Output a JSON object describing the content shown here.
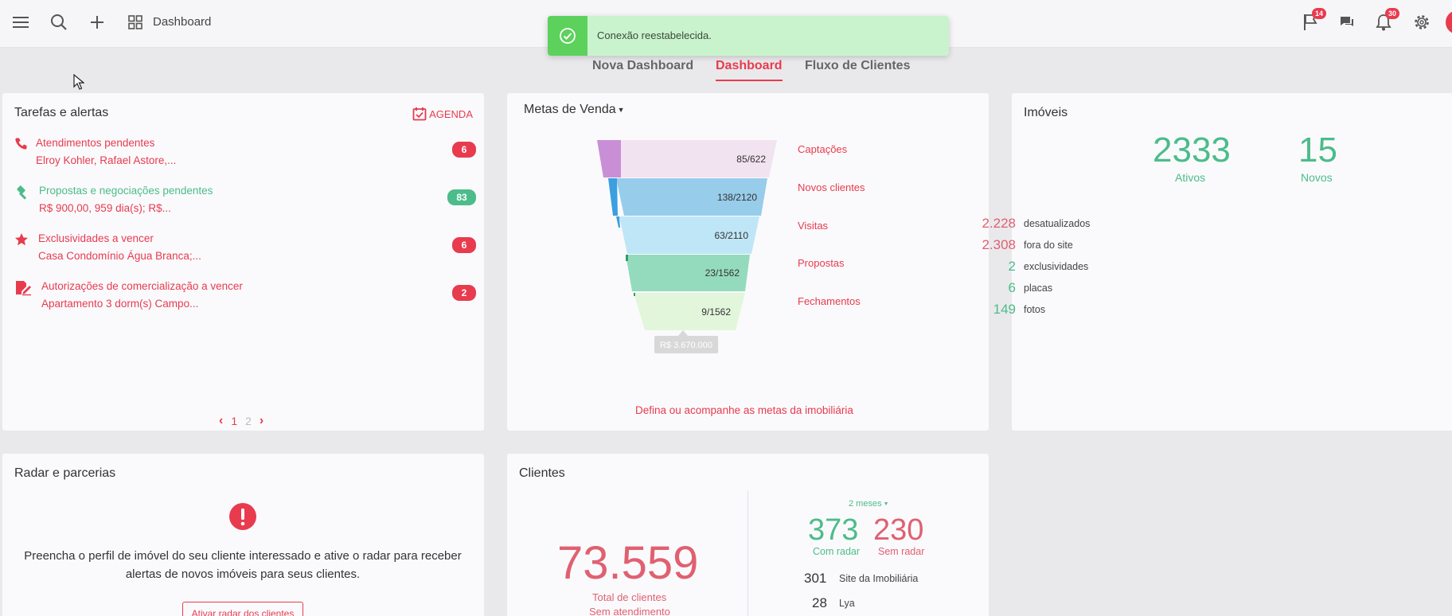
{
  "topbar": {
    "title": "Dashboard",
    "icons": [
      "menu-icon",
      "search-icon",
      "plus-icon",
      "grid-icon",
      "flag-icon",
      "chat-icon",
      "bell-icon",
      "gear-icon"
    ],
    "flag_badge": "14",
    "bell_badge": "30"
  },
  "toast": {
    "message": "Conexão reestabelecida.",
    "color": "#5cd15c"
  },
  "tabs": [
    {
      "label": "Nova Dashboard"
    },
    {
      "label": "Dashboard",
      "active": true
    },
    {
      "label": "Fluxo de Clientes"
    }
  ],
  "tasks": {
    "title": "Tarefas e alertas",
    "agenda_label": "AGENDA",
    "items": [
      {
        "icon": "phone-icon",
        "title": "Atendimentos pendentes",
        "subtitle": "Elroy Kohler, Rafael Astore,...",
        "count": "6",
        "color": "#e83b4e"
      },
      {
        "icon": "gavel-icon",
        "title": "Propostas e negociações pendentes",
        "subtitle": "R$ 900,00, 959 dia(s); R$...",
        "count": "83",
        "color": "#4cbc8a"
      },
      {
        "icon": "star-icon",
        "title": "Exclusividades a vencer",
        "subtitle": "Casa Condomínio Água Branca;...",
        "count": "6",
        "color": "#e83b4e"
      },
      {
        "icon": "signature-icon",
        "title": "Autorizações de comercialização a vencer",
        "subtitle": "Apartamento 3 dorm(s) Campo...",
        "count": "2",
        "color": "#e83b4e"
      }
    ],
    "pagination": {
      "current": "1",
      "next": "2"
    }
  },
  "metas": {
    "title": "Metas de Venda",
    "stages": [
      {
        "label": "Captações",
        "value": "85/622"
      },
      {
        "label": "Novos clientes",
        "value": "138/2120"
      },
      {
        "label": "Visitas",
        "value": "63/2110"
      },
      {
        "label": "Propostas",
        "value": "23/1562"
      },
      {
        "label": "Fechamentos",
        "value": "9/1562"
      }
    ],
    "total_value": "R$ 3.670.000",
    "link": "Defina ou acompanhe as metas da imobiliária"
  },
  "imoveis": {
    "title": "Imóveis",
    "ativos_value": "2333",
    "ativos_label": "Ativos",
    "novos_value": "15",
    "novos_label": "Novos",
    "stats": [
      {
        "value": "2.228",
        "label": "desatualizados",
        "color": "#e06070"
      },
      {
        "value": "2.308",
        "label": "fora do site",
        "color": "#e06070"
      },
      {
        "value": "2",
        "label": "exclusividades",
        "color": "#4cbc8a"
      },
      {
        "value": "6",
        "label": "placas",
        "color": "#4cbc8a"
      },
      {
        "value": "149",
        "label": "fotos",
        "color": "#4cbc8a"
      }
    ]
  },
  "radar": {
    "title": "Radar e parcerias",
    "message": "Preencha o perfil de imóvel do seu cliente interessado e ative o radar para receber alertas de novos imóveis para seus clientes.",
    "button": "Ativar radar dos clientes"
  },
  "clientes": {
    "title": "Clientes",
    "total": "73.559",
    "total_label": "Total de clientes",
    "sem_atendimento": "Sem atendimento",
    "period": "2 meses",
    "com_radar_value": "373",
    "com_radar_label": "Com radar",
    "sem_radar_value": "230",
    "sem_radar_label": "Sem radar",
    "sources": [
      {
        "value": "301",
        "label": "Site da Imobiliária"
      },
      {
        "value": "28",
        "label": "Lya"
      }
    ]
  }
}
